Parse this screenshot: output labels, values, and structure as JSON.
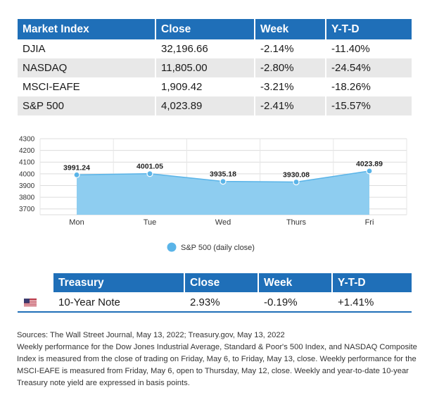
{
  "market_table": {
    "headers": [
      "Market Index",
      "Close",
      "Week",
      "Y-T-D"
    ],
    "rows": [
      {
        "name": "DJIA",
        "close": "32,196.66",
        "week": "-2.14%",
        "ytd": "-11.40%"
      },
      {
        "name": "NASDAQ",
        "close": "11,805.00",
        "week": "-2.80%",
        "ytd": "-24.54%"
      },
      {
        "name": "MSCI-EAFE",
        "close": "1,909.42",
        "week": "-3.21%",
        "ytd": "-18.26%"
      },
      {
        "name": "S&P 500",
        "close": "4,023.89",
        "week": "-2.41%",
        "ytd": "-15.57%"
      }
    ]
  },
  "chart_data": {
    "type": "area",
    "categories": [
      "Mon",
      "Tue",
      "Wed",
      "Thurs",
      "Fri"
    ],
    "series": [
      {
        "name": "S&P 500 (daily close)",
        "values": [
          3991.24,
          4001.05,
          3935.18,
          3930.08,
          4023.89
        ],
        "labels": [
          "3991.24",
          "4001.05",
          "3935.18",
          "3930.08",
          "4023.89"
        ]
      }
    ],
    "yticks": [
      "3700",
      "3800",
      "3900",
      "4000",
      "4100",
      "4200",
      "4300"
    ],
    "ylim": [
      3650,
      4300
    ],
    "grid": true,
    "legend_position": "bottom-center",
    "colors": {
      "fill": "#8ecdf0",
      "line": "#5ab4e8",
      "marker": "#5ab4e8"
    }
  },
  "treasury_table": {
    "headers": [
      "Treasury",
      "Close",
      "Week",
      "Y-T-D"
    ],
    "row": {
      "flag_icon": "us-flag-icon",
      "name": "10-Year Note",
      "close": "2.93%",
      "week": "-0.19%",
      "ytd": "+1.41%"
    }
  },
  "footnote": {
    "sources": "Sources: The Wall Street Journal, May 13, 2022; Treasury.gov, May 13, 2022",
    "text": "Weekly performance for the Dow Jones Industrial Average, Standard & Poor's 500 Index, and NASDAQ Composite Index is measured from the close of trading on Friday, May 6, to Friday, May 13, close. Weekly performance for the MSCI-EAFE is measured from Friday, May 6, open to Thursday, May 12, close. Weekly and year-to-date 10-year Treasury note yield are expressed in basis points."
  },
  "colors": {
    "header_blue": "#1f6fb8",
    "row_gray": "#e8e8e8"
  }
}
